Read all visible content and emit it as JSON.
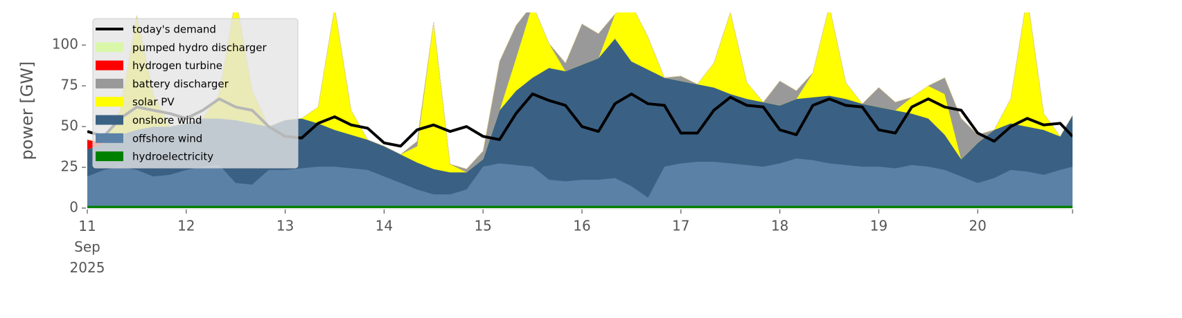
{
  "chart_data": {
    "type": "stacked_area",
    "y_label": "power [GW]",
    "x": [
      "2025-09-11T00:00",
      "2025-09-11T04:00",
      "2025-09-11T08:00",
      "2025-09-11T12:00",
      "2025-09-11T16:00",
      "2025-09-11T20:00",
      "2025-09-12T00:00",
      "2025-09-12T04:00",
      "2025-09-12T08:00",
      "2025-09-12T12:00",
      "2025-09-12T16:00",
      "2025-09-12T20:00",
      "2025-09-13T00:00",
      "2025-09-13T04:00",
      "2025-09-13T08:00",
      "2025-09-13T12:00",
      "2025-09-13T16:00",
      "2025-09-13T20:00",
      "2025-09-14T00:00",
      "2025-09-14T04:00",
      "2025-09-14T08:00",
      "2025-09-14T12:00",
      "2025-09-14T16:00",
      "2025-09-14T20:00",
      "2025-09-15T00:00",
      "2025-09-15T04:00",
      "2025-09-15T08:00",
      "2025-09-15T12:00",
      "2025-09-15T16:00",
      "2025-09-15T20:00",
      "2025-09-16T00:00",
      "2025-09-16T04:00",
      "2025-09-16T08:00",
      "2025-09-16T12:00",
      "2025-09-16T16:00",
      "2025-09-16T20:00",
      "2025-09-17T00:00",
      "2025-09-17T04:00",
      "2025-09-17T08:00",
      "2025-09-17T12:00",
      "2025-09-17T16:00",
      "2025-09-17T20:00",
      "2025-09-18T00:00",
      "2025-09-18T04:00",
      "2025-09-18T08:00",
      "2025-09-18T12:00",
      "2025-09-18T16:00",
      "2025-09-18T20:00",
      "2025-09-19T00:00",
      "2025-09-19T04:00",
      "2025-09-19T08:00",
      "2025-09-19T12:00",
      "2025-09-19T16:00",
      "2025-09-19T20:00",
      "2025-09-20T00:00",
      "2025-09-20T04:00",
      "2025-09-20T08:00",
      "2025-09-20T12:00",
      "2025-09-20T16:00",
      "2025-09-20T20:00",
      "2025-09-20T23:00"
    ],
    "series": [
      {
        "name": "hydroelectricity",
        "color": "#008000",
        "values": [
          1.5,
          1.5,
          1.5,
          1.5,
          1.5,
          1.5,
          1.5,
          1.5,
          1.5,
          1.5,
          1.5,
          1.5,
          1.5,
          1.5,
          1.5,
          1.5,
          1.5,
          1.5,
          1.5,
          1.5,
          1.5,
          1.5,
          1.5,
          1.5,
          1.5,
          1.5,
          1.5,
          1.5,
          1.5,
          1.5,
          1.5,
          1.5,
          1.5,
          1.5,
          1.5,
          1.5,
          1.5,
          1.5,
          1.5,
          1.5,
          1.5,
          1.5,
          1.5,
          1.5,
          1.5,
          1.5,
          1.5,
          1.5,
          1.5,
          1.5,
          1.5,
          1.5,
          1.5,
          1.5,
          1.5,
          1.5,
          1.5,
          1.5,
          1.5,
          1.5,
          1.5
        ]
      },
      {
        "name": "offshore wind",
        "color": "#5b82a6",
        "values": [
          18,
          22,
          24,
          22,
          18,
          19,
          22,
          24,
          25,
          14,
          13,
          22,
          22,
          23,
          24,
          24,
          23,
          22,
          18,
          14,
          10,
          7,
          7,
          10,
          24,
          26,
          25,
          24,
          16,
          15,
          16,
          16,
          17,
          12,
          5,
          24,
          26,
          27,
          27,
          26,
          25,
          24,
          26,
          29,
          28,
          26,
          25,
          24,
          24,
          23,
          25,
          24,
          22,
          18,
          14,
          17,
          22,
          21,
          19,
          22,
          24
        ]
      },
      {
        "name": "onshore wind",
        "color": "#3a6184",
        "values": [
          16.5,
          16.5,
          19.5,
          24.5,
          30.5,
          29.5,
          28.5,
          29.5,
          28.5,
          38.5,
          37.5,
          26.5,
          30.5,
          30.5,
          26.5,
          22.5,
          20.5,
          18.5,
          18.5,
          17.5,
          16.5,
          15.5,
          13.5,
          10.5,
          4.5,
          32.5,
          45.5,
          54.5,
          68.5,
          67.5,
          70.5,
          74.5,
          85.5,
          76.5,
          78.5,
          54.5,
          50.5,
          47.5,
          45.5,
          42.5,
          40.5,
          39.5,
          35.5,
          36.5,
          38.5,
          41.5,
          40.5,
          38.5,
          36.5,
          35.5,
          31.5,
          29.5,
          21.5,
          10.5,
          24.5,
          29.5,
          28.5,
          27.5,
          27.5,
          20.5,
          31.5
        ]
      },
      {
        "name": "solar PV",
        "color": "#ffff00",
        "values": [
          0,
          0,
          15,
          70,
          20,
          0,
          0,
          0,
          15,
          75,
          20,
          0,
          0,
          0,
          10,
          75,
          15,
          0,
          0,
          0,
          10,
          90,
          5,
          0,
          0,
          0,
          20,
          45,
          15,
          0,
          0,
          0,
          15,
          35,
          20,
          0,
          0,
          0,
          15,
          50,
          10,
          0,
          0,
          0,
          15,
          55,
          10,
          0,
          0,
          0,
          10,
          20,
          25,
          0,
          0,
          0,
          15,
          80,
          10,
          0,
          0
        ]
      },
      {
        "name": "battery discharger",
        "color": "#999999",
        "values": [
          0,
          0,
          0,
          0,
          0,
          0,
          0,
          0,
          0,
          0,
          0,
          0,
          0,
          0,
          0,
          0,
          0,
          0,
          0,
          0,
          3,
          0,
          0,
          2,
          5,
          30,
          20,
          0,
          0,
          5,
          25,
          15,
          0,
          0,
          0,
          0,
          3,
          0,
          0,
          0,
          0,
          0,
          15,
          5,
          0,
          0,
          0,
          0,
          12,
          5,
          0,
          0,
          10,
          25,
          5,
          0,
          0,
          0,
          0,
          0,
          0
        ]
      },
      {
        "name": "hydrogen turbine",
        "color": "#ff0000",
        "values": [
          6,
          0,
          0,
          0,
          0,
          0,
          0,
          0,
          0,
          0,
          0,
          0,
          0,
          0,
          0,
          0,
          0,
          0,
          0,
          0,
          0,
          0,
          0,
          0,
          0,
          0,
          0,
          0,
          0,
          0,
          0,
          0,
          0,
          0,
          0,
          0,
          0,
          0,
          0,
          0,
          0,
          0,
          0,
          0,
          0,
          0,
          0,
          0,
          0,
          0,
          0,
          0,
          0,
          0,
          0,
          0,
          0,
          0,
          0,
          0,
          0
        ]
      },
      {
        "name": "pumped hydro discharger",
        "color": "#d9f7a8",
        "values": [
          0,
          0,
          0,
          0,
          0,
          0,
          0,
          0,
          0,
          0,
          0,
          0,
          0,
          0,
          0,
          0,
          0,
          0,
          0,
          0,
          0,
          0,
          0,
          0,
          0,
          0,
          0,
          0,
          0,
          0,
          0,
          0,
          0,
          0,
          0,
          0,
          0,
          0,
          0,
          0,
          0,
          0,
          0,
          0,
          0,
          0,
          0,
          0,
          0,
          0,
          0,
          0,
          0,
          0,
          0,
          0,
          0,
          0,
          0,
          0,
          0
        ]
      }
    ],
    "demand": {
      "name": "today's demand",
      "color": "#000000",
      "values": [
        47,
        44,
        55,
        62,
        60,
        58,
        55,
        60,
        67,
        62,
        60,
        50,
        44,
        43,
        52,
        56,
        51,
        49,
        40,
        38,
        48,
        51,
        47,
        50,
        44,
        42,
        58,
        70,
        66,
        63,
        50,
        47,
        64,
        70,
        64,
        63,
        46,
        46,
        60,
        68,
        63,
        62,
        48,
        45,
        63,
        67,
        63,
        62,
        48,
        46,
        62,
        67,
        62,
        60,
        46,
        41,
        50,
        55,
        51,
        52,
        44
      ]
    },
    "xlim": [
      "2025-09-11T00:00",
      "2025-09-20T23:00"
    ],
    "xticks": [
      {
        "value": "2025-09-11T00:00",
        "label": "11\nSep\n2025"
      },
      {
        "value": "2025-09-12T00:00",
        "label": "12"
      },
      {
        "value": "2025-09-13T00:00",
        "label": "13"
      },
      {
        "value": "2025-09-14T00:00",
        "label": "14"
      },
      {
        "value": "2025-09-15T00:00",
        "label": "15"
      },
      {
        "value": "2025-09-16T00:00",
        "label": "16"
      },
      {
        "value": "2025-09-17T00:00",
        "label": "17"
      },
      {
        "value": "2025-09-18T00:00",
        "label": "18"
      },
      {
        "value": "2025-09-19T00:00",
        "label": "19"
      },
      {
        "value": "2025-09-20T00:00",
        "label": "20"
      }
    ],
    "ylim": [
      0,
      120
    ],
    "yticks": [
      0,
      25,
      50,
      75,
      100
    ],
    "grid": false,
    "legend": "upper left"
  }
}
